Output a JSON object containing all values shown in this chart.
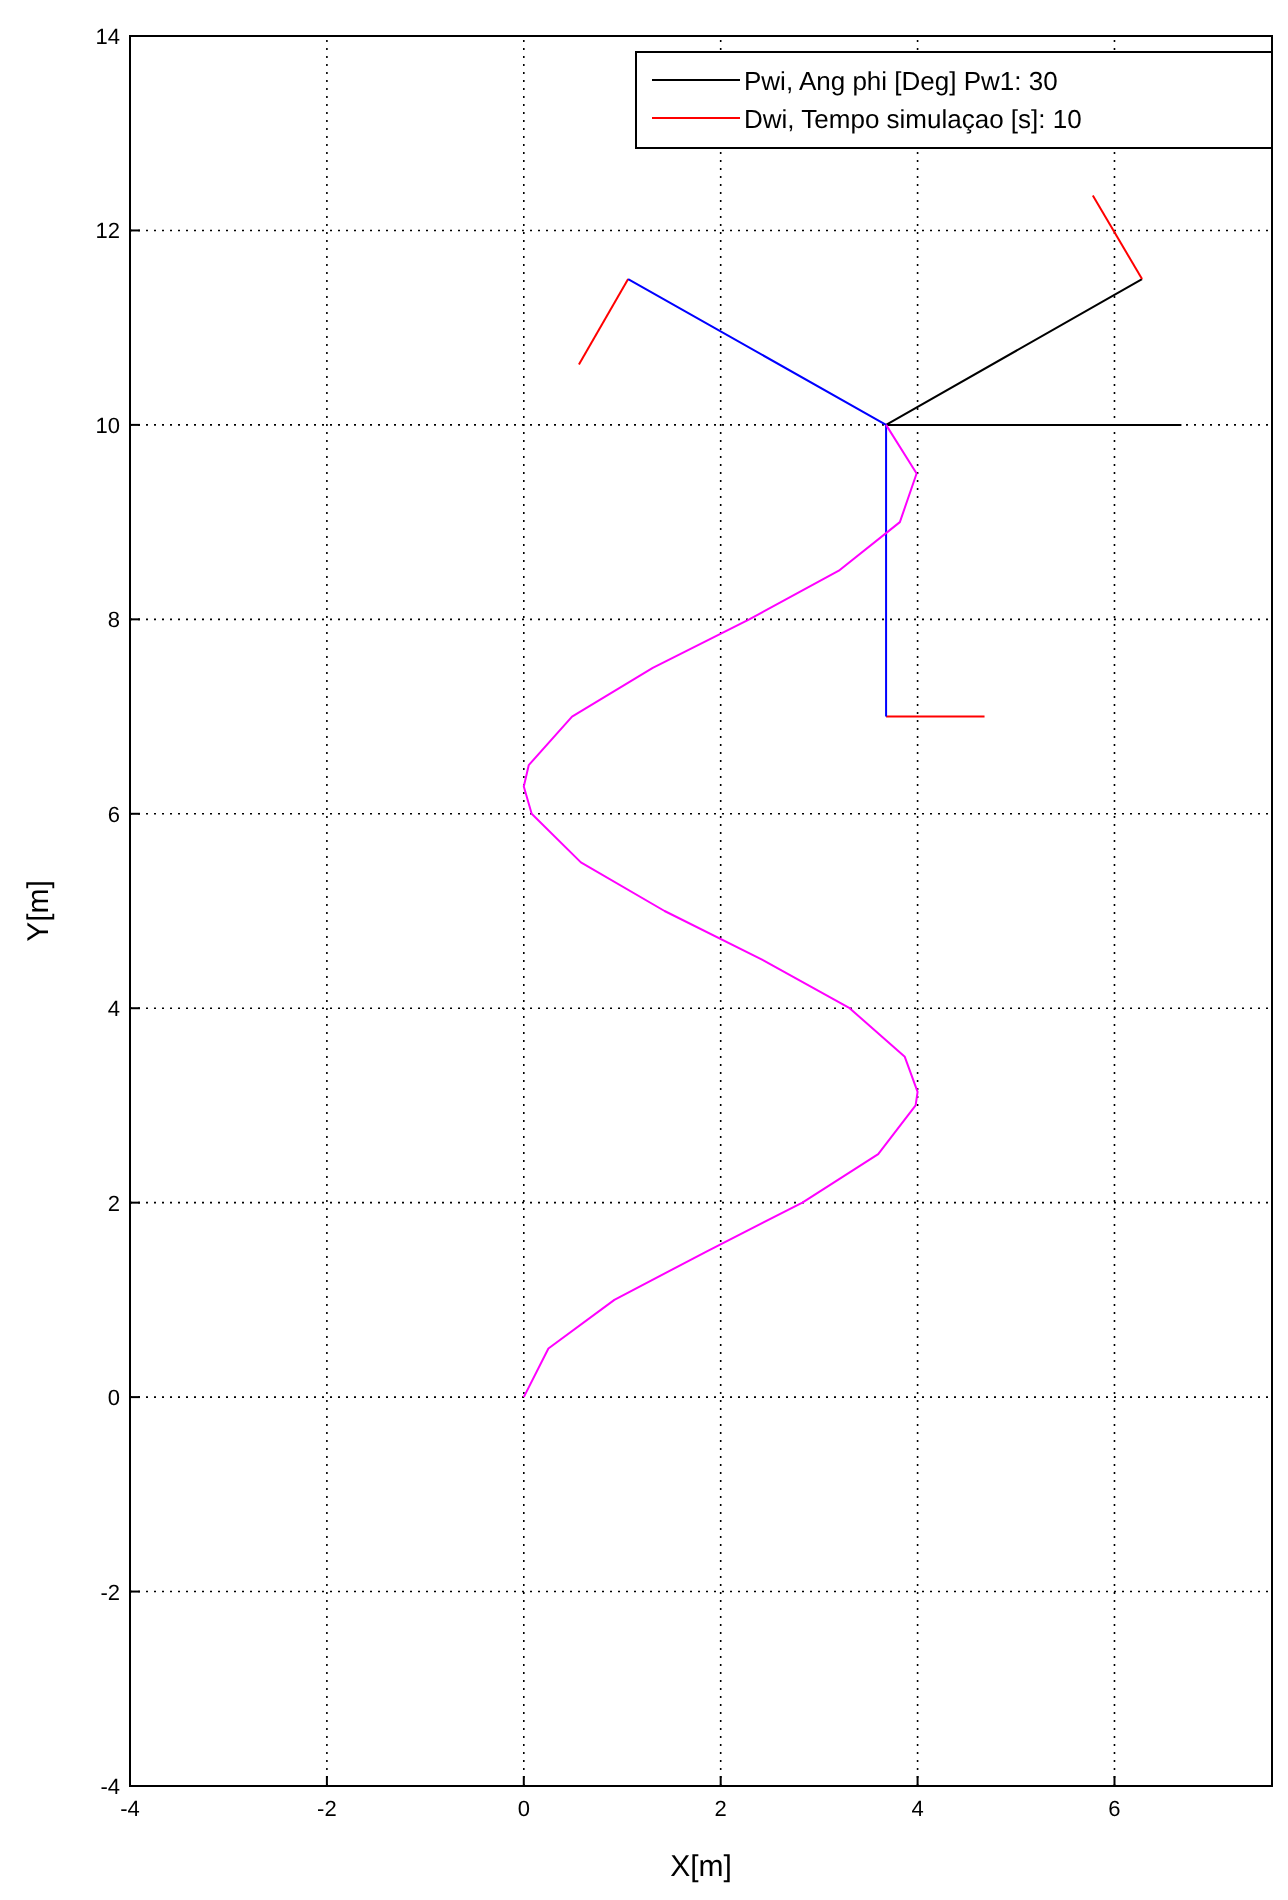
{
  "chart_data": {
    "type": "line",
    "xlabel": "X[m]",
    "ylabel": "Y[m]",
    "xlim": [
      -4,
      7.6
    ],
    "ylim": [
      -4,
      14
    ],
    "xticks": [
      -4,
      -2,
      0,
      2,
      4,
      6
    ],
    "yticks": [
      -4,
      -2,
      0,
      2,
      4,
      6,
      8,
      10,
      12,
      14
    ],
    "grid": true,
    "legend": "top right",
    "marker": "none",
    "line_style": "solid",
    "series": [
      {
        "name": "Pwi, Ang phi [Deg] Pw1: 30",
        "color": "#000000",
        "x": [
          6.28,
          3.68,
          6.68
        ],
        "values": [
          11.5,
          10,
          10
        ]
      },
      {
        "name": "Dwi, Tempo simulaçao [s]: 10",
        "color": "#ff0000",
        "x": [
          5.78,
          6.28
        ],
        "values": [
          12.36,
          11.5
        ]
      },
      {
        "color": "#ff0000",
        "x": [
          1.06,
          0.56
        ],
        "values": [
          11.5,
          10.62
        ]
      },
      {
        "color": "#ff0000",
        "x": [
          3.68,
          4.68
        ],
        "values": [
          7,
          7
        ]
      },
      {
        "color": "#0000ff",
        "x": [
          1.06,
          3.68,
          3.68
        ],
        "values": [
          11.5,
          10,
          7
        ]
      },
      {
        "color": "#ff00ff",
        "x": [
          0,
          0.25,
          0.92,
          1.86,
          2.83,
          3.6,
          3.98,
          4,
          3.87,
          3.31,
          2.42,
          1.43,
          0.58,
          0.08,
          0,
          0.05,
          0.49,
          1.31,
          2.29,
          3.2,
          3.82,
          3.99,
          3.68
        ],
        "values": [
          0,
          0.5,
          1,
          1.5,
          2,
          2.5,
          3,
          3.14,
          3.5,
          4,
          4.5,
          5,
          5.5,
          6,
          6.28,
          6.5,
          7,
          7.5,
          8,
          8.5,
          9,
          9.5,
          10
        ]
      }
    ]
  }
}
